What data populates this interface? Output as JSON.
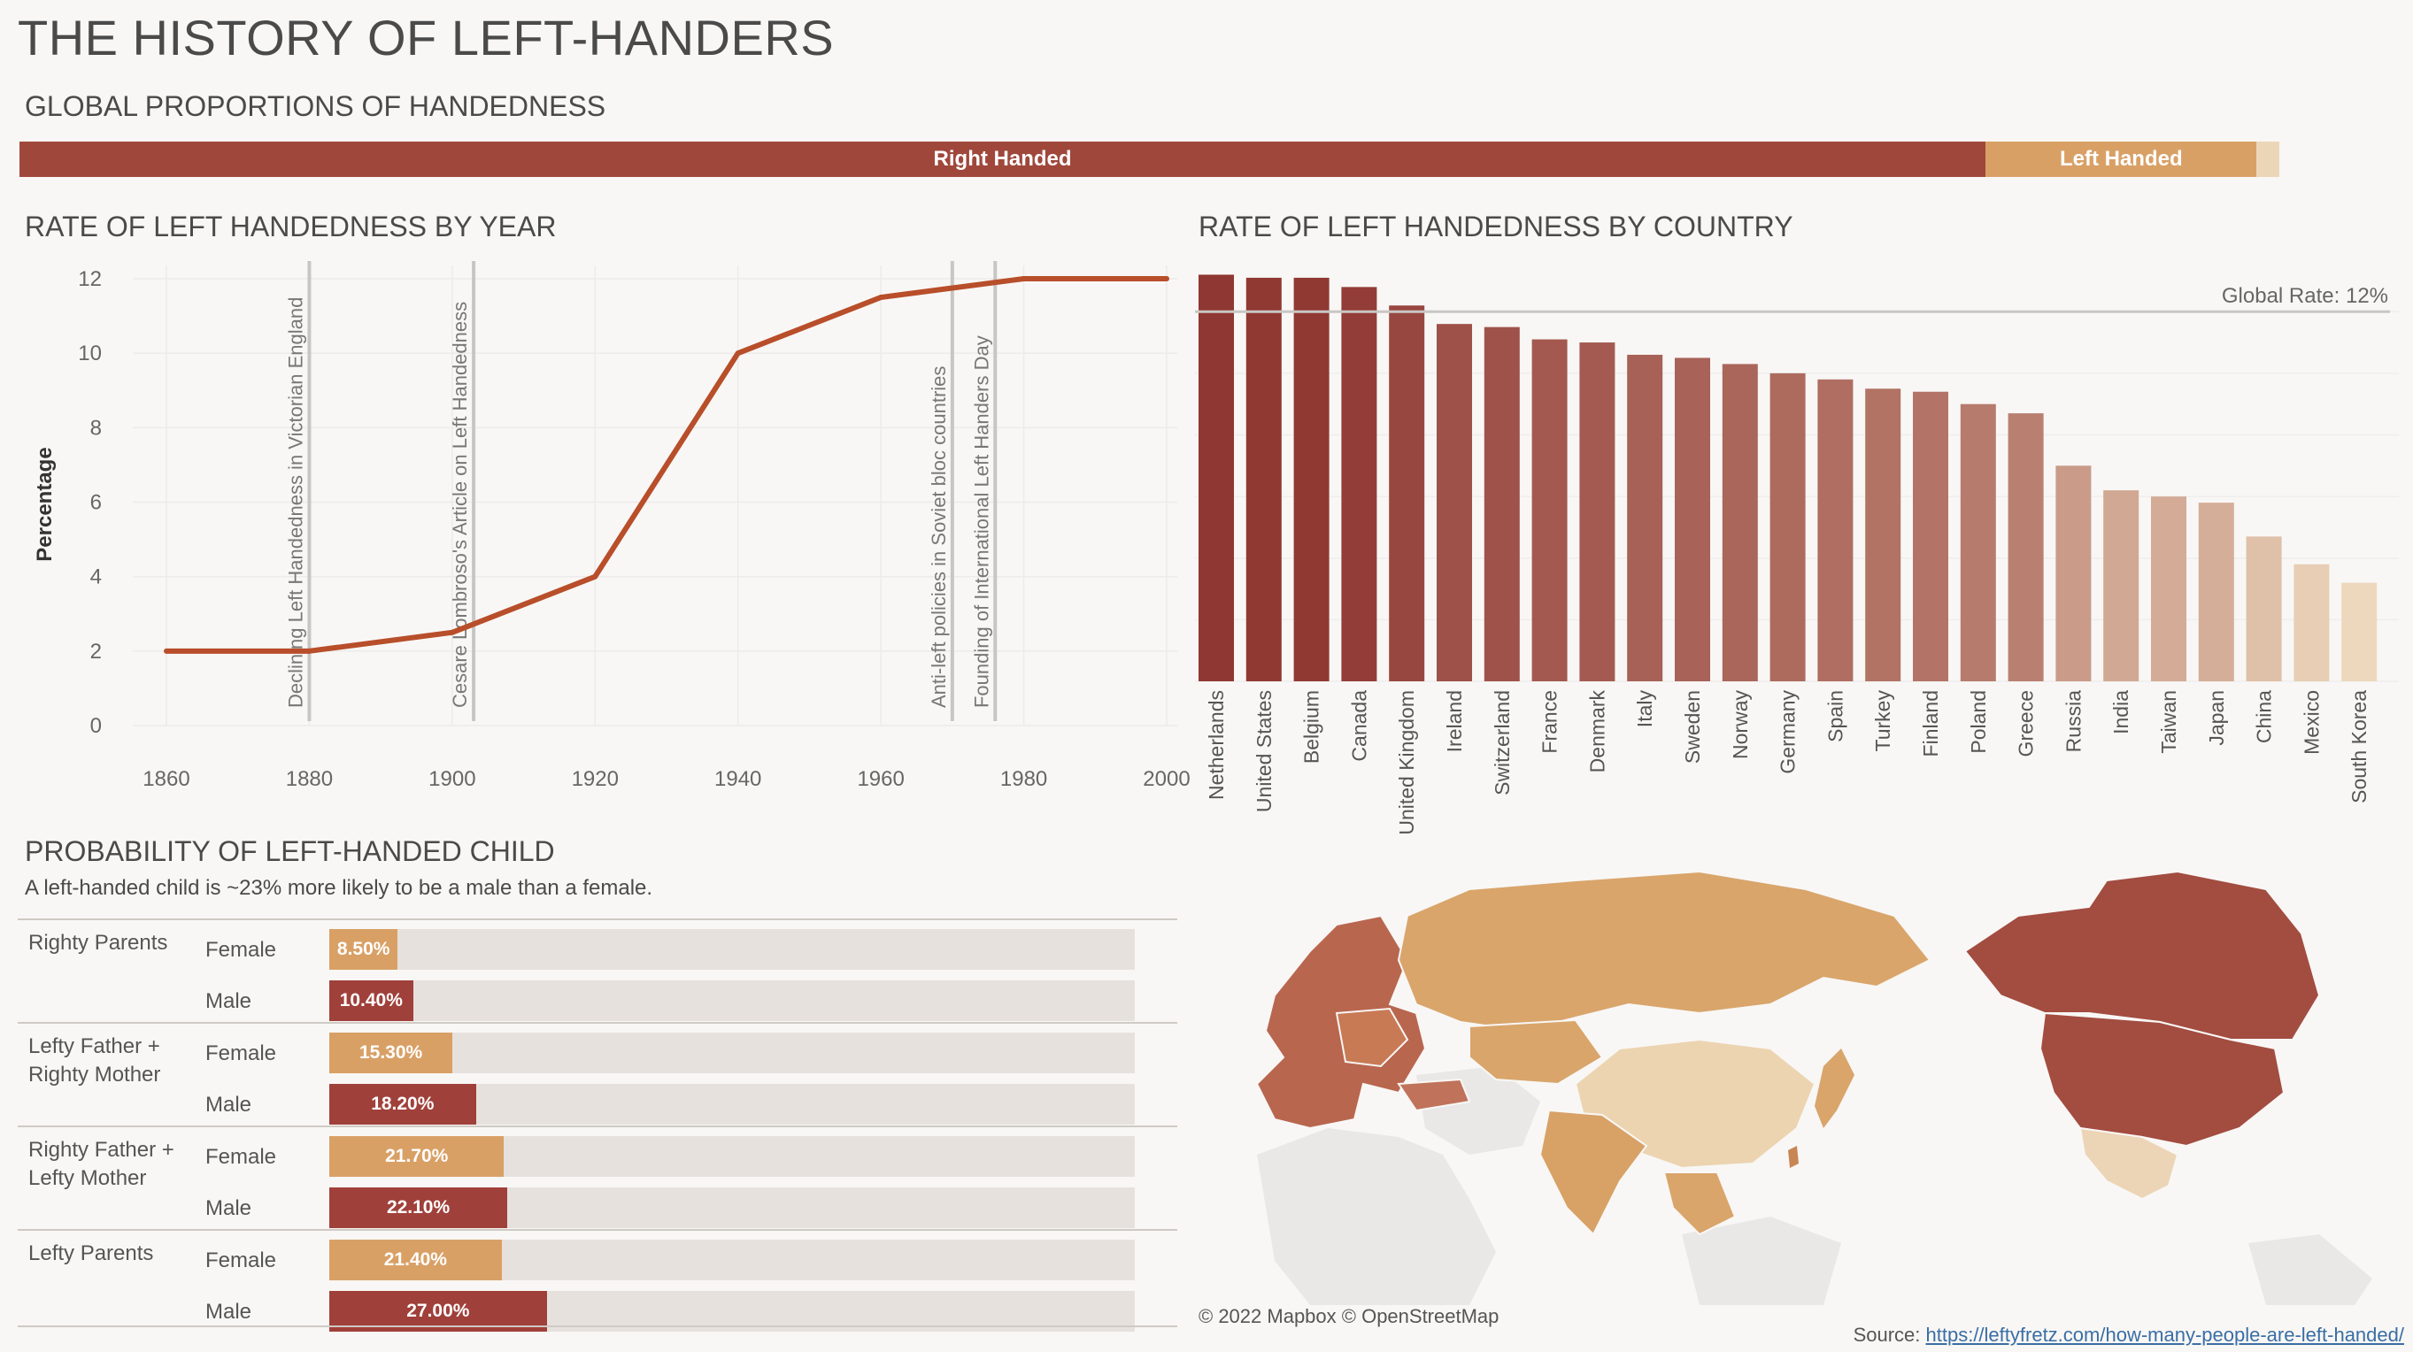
{
  "title": "THE HISTORY OF LEFT-HANDERS",
  "global": {
    "title": "GLOBAL PROPORTIONS OF HANDEDNESS",
    "segments": [
      {
        "label": "Right Handed",
        "value": 87,
        "color": "#a0473c"
      },
      {
        "label": "Left Handed",
        "value": 12,
        "color": "#d9a066"
      },
      {
        "label": "",
        "value": 1,
        "color": "#ecd6b8"
      }
    ]
  },
  "year_chart": {
    "title": "RATE OF LEFT HANDEDNESS BY YEAR",
    "chart_data": {
      "type": "line",
      "x": [
        1860,
        1880,
        1900,
        1920,
        1940,
        1960,
        1980,
        2000
      ],
      "y": [
        2,
        2,
        2.5,
        4,
        10,
        11.5,
        12,
        12
      ],
      "xlabel": "",
      "ylabel": "Percentage",
      "xlim": [
        1860,
        2000
      ],
      "ylim": [
        0,
        12
      ],
      "xticks": [
        "1860",
        "1880",
        "1900",
        "1920",
        "1940",
        "1960",
        "1980",
        "2000"
      ],
      "yticks": [
        "0",
        "2",
        "4",
        "6",
        "8",
        "10",
        "12"
      ],
      "line_color": "#b84e2a",
      "grid": true,
      "annotations": [
        {
          "x": 1880,
          "text": "Declining Left Handedness in Victorian England"
        },
        {
          "x": 1903,
          "text": "Cesare Lombroso's Article on Left Handedness"
        },
        {
          "x": 1970,
          "text": "Anti-left policies in Soviet bloc countries"
        },
        {
          "x": 1976,
          "text": "Founding of International Left Handers Day"
        }
      ]
    }
  },
  "country_chart": {
    "title": "RATE OF LEFT HANDEDNESS BY COUNTRY",
    "chart_data": {
      "type": "bar",
      "categories": [
        "Netherlands",
        "United States",
        "Belgium",
        "Canada",
        "United Kingdom",
        "Ireland",
        "Switzerland",
        "France",
        "Denmark",
        "Italy",
        "Sweden",
        "Norway",
        "Germany",
        "Spain",
        "Turkey",
        "Finland",
        "Poland",
        "Greece",
        "Russia",
        "India",
        "Taiwan",
        "Japan",
        "China",
        "Mexico",
        "South Korea"
      ],
      "values": [
        13.2,
        13.1,
        13.1,
        12.8,
        12.2,
        11.6,
        11.5,
        11.1,
        11.0,
        10.6,
        10.5,
        10.3,
        10.0,
        9.8,
        9.5,
        9.4,
        9.0,
        8.7,
        7.0,
        6.2,
        6.0,
        5.8,
        4.7,
        3.8,
        3.2
      ],
      "ylim": [
        0,
        13.5
      ],
      "reference_line": {
        "value": 12,
        "label": "Global Rate: 12%"
      },
      "color_low": "#edd8bd",
      "color_high": "#8f3732"
    }
  },
  "probability": {
    "title": "PROBABILITY OF LEFT-HANDED CHILD",
    "subtitle": "A left-handed child is ~23% more likely to be a male than a female.",
    "chart_data": {
      "type": "bar",
      "max_value": 100,
      "groups": [
        {
          "name": "Righty Parents",
          "rows": [
            {
              "sex": "Female",
              "value": 8.5,
              "label": "8.50%"
            },
            {
              "sex": "Male",
              "value": 10.4,
              "label": "10.40%"
            }
          ]
        },
        {
          "name": "Lefty Father + Righty Mother",
          "rows": [
            {
              "sex": "Female",
              "value": 15.3,
              "label": "15.30%"
            },
            {
              "sex": "Male",
              "value": 18.2,
              "label": "18.20%"
            }
          ]
        },
        {
          "name": "Righty Father + Lefty Mother",
          "rows": [
            {
              "sex": "Female",
              "value": 21.7,
              "label": "21.70%"
            },
            {
              "sex": "Male",
              "value": 22.1,
              "label": "22.10%"
            }
          ]
        },
        {
          "name": "Lefty Parents",
          "rows": [
            {
              "sex": "Female",
              "value": 21.4,
              "label": "21.40%"
            },
            {
              "sex": "Male",
              "value": 27.0,
              "label": "27.00%"
            }
          ]
        }
      ],
      "female_color": "#d9a066",
      "male_color": "#a0403a"
    }
  },
  "map": {
    "credit": "© 2022 Mapbox  © OpenStreetMap",
    "colors": {
      "north_america": "#a34c40",
      "mexico": "#ecd4b6",
      "russia": "#d9a56b",
      "china": "#ecd4b1",
      "india": "#d8a166",
      "japan": "#d9a56b",
      "europe": "#b9664f",
      "base_land": "#e9e8e6"
    }
  },
  "source": {
    "label": "Source: ",
    "link": "https://leftyfretz.com/how-many-people-are-left-handed/"
  }
}
